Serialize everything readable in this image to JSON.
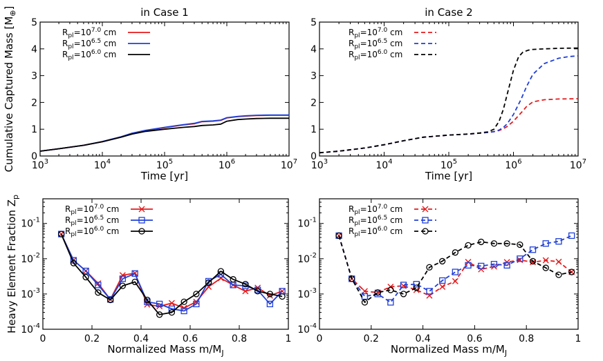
{
  "chart_data": [
    {
      "type": "line",
      "title": "in Case 1",
      "xlabel": "Time [yr]",
      "ylabel": "Cumulative Captured Mass [M",
      "ylabel_sym": "⊕",
      "ylabel_close": "]",
      "xscale": "log",
      "xlim": [
        1000,
        10000000
      ],
      "ylim": [
        0,
        5
      ],
      "x_ticks": [
        {
          "base": "10",
          "exp": "3"
        },
        {
          "base": "10",
          "exp": "4"
        },
        {
          "base": "10",
          "exp": "5"
        },
        {
          "base": "10",
          "exp": "6"
        },
        {
          "base": "10",
          "exp": "7"
        }
      ],
      "y_ticks": [
        "0",
        "1",
        "2",
        "3",
        "4",
        "5"
      ],
      "legend_position": "top-left",
      "series": [
        {
          "pre": "R",
          "sub": "pl",
          "mid": "=10",
          "sup": "7.0",
          "post": " cm",
          "color": "#e41a1c",
          "style": "solid",
          "marker": "",
          "x": [
            1000,
            2000,
            5000,
            10000,
            20000,
            30000,
            50000,
            100000,
            200000,
            300000,
            400000,
            600000,
            800000,
            1000000,
            1500000,
            2000000,
            3000000,
            5000000,
            10000000
          ],
          "y": [
            0.18,
            0.27,
            0.4,
            0.53,
            0.71,
            0.84,
            0.95,
            1.06,
            1.16,
            1.2,
            1.28,
            1.3,
            1.33,
            1.42,
            1.47,
            1.49,
            1.51,
            1.52,
            1.52
          ]
        },
        {
          "pre": "R",
          "sub": "pl",
          "mid": "=10",
          "sup": "6.5",
          "post": " cm",
          "color": "#1f3fd6",
          "style": "solid",
          "marker": "",
          "x": [
            1000,
            2000,
            5000,
            10000,
            20000,
            30000,
            50000,
            100000,
            200000,
            300000,
            400000,
            600000,
            800000,
            1000000,
            1500000,
            2000000,
            3000000,
            5000000,
            10000000
          ],
          "y": [
            0.18,
            0.27,
            0.4,
            0.54,
            0.72,
            0.85,
            0.96,
            1.07,
            1.17,
            1.22,
            1.29,
            1.31,
            1.34,
            1.43,
            1.48,
            1.5,
            1.52,
            1.53,
            1.53
          ]
        },
        {
          "pre": "R",
          "sub": "pl",
          "mid": "=10",
          "sup": "6.0",
          "post": " cm",
          "color": "#000000",
          "style": "solid",
          "marker": "",
          "x": [
            1000,
            2000,
            5000,
            10000,
            20000,
            30000,
            50000,
            100000,
            200000,
            300000,
            400000,
            600000,
            800000,
            1000000,
            1500000,
            2000000,
            3000000,
            5000000,
            10000000
          ],
          "y": [
            0.18,
            0.27,
            0.4,
            0.53,
            0.7,
            0.82,
            0.92,
            1.0,
            1.07,
            1.1,
            1.14,
            1.16,
            1.19,
            1.3,
            1.36,
            1.38,
            1.4,
            1.41,
            1.41
          ]
        }
      ]
    },
    {
      "type": "line",
      "title": "in Case 2",
      "xlabel": "Time [yr]",
      "ylabel": "",
      "xscale": "log",
      "xlim": [
        1000,
        10000000
      ],
      "ylim": [
        0,
        5
      ],
      "x_ticks": [
        {
          "base": "10",
          "exp": "3"
        },
        {
          "base": "10",
          "exp": "4"
        },
        {
          "base": "10",
          "exp": "5"
        },
        {
          "base": "10",
          "exp": "6"
        },
        {
          "base": "10",
          "exp": "7"
        }
      ],
      "y_ticks": [
        "0",
        "1",
        "2",
        "3",
        "4",
        "5"
      ],
      "legend_position": "top-left",
      "series": [
        {
          "pre": "R",
          "sub": "pl",
          "mid": "=10",
          "sup": "7.0",
          "post": " cm",
          "color": "#e41a1c",
          "style": "dashed",
          "marker": "",
          "x": [
            1000,
            2000,
            5000,
            10000,
            20000,
            40000,
            100000,
            200000,
            300000,
            400000,
            500000,
            600000,
            700000,
            800000,
            1000000,
            1300000,
            1600000,
            2000000,
            3000000,
            5000000,
            10000000
          ],
          "y": [
            0.12,
            0.18,
            0.3,
            0.42,
            0.57,
            0.7,
            0.78,
            0.82,
            0.85,
            0.88,
            0.91,
            0.95,
            1.02,
            1.1,
            1.3,
            1.6,
            1.85,
            2.02,
            2.1,
            2.13,
            2.14
          ]
        },
        {
          "pre": "R",
          "sub": "pl",
          "mid": "=10",
          "sup": "6.5",
          "post": " cm",
          "color": "#1f3fd6",
          "style": "dashed",
          "marker": "",
          "x": [
            1000,
            2000,
            5000,
            10000,
            20000,
            40000,
            100000,
            200000,
            300000,
            400000,
            500000,
            600000,
            700000,
            800000,
            1000000,
            1300000,
            1600000,
            2000000,
            3000000,
            5000000,
            7000000,
            10000000
          ],
          "y": [
            0.12,
            0.18,
            0.3,
            0.42,
            0.57,
            0.7,
            0.78,
            0.82,
            0.85,
            0.88,
            0.91,
            0.97,
            1.07,
            1.2,
            1.55,
            2.1,
            2.6,
            3.05,
            3.45,
            3.65,
            3.71,
            3.74
          ]
        },
        {
          "pre": "R",
          "sub": "pl",
          "mid": "=10",
          "sup": "6.0",
          "post": " cm",
          "color": "#000000",
          "style": "dashed",
          "marker": "",
          "x": [
            1000,
            2000,
            5000,
            10000,
            20000,
            40000,
            100000,
            200000,
            300000,
            400000,
            500000,
            600000,
            700000,
            800000,
            1000000,
            1200000,
            1400000,
            1700000,
            2000000,
            3000000,
            5000000,
            10000000
          ],
          "y": [
            0.12,
            0.18,
            0.3,
            0.42,
            0.57,
            0.7,
            0.78,
            0.82,
            0.86,
            0.9,
            1.0,
            1.3,
            1.75,
            2.3,
            3.2,
            3.7,
            3.88,
            3.95,
            3.98,
            4.0,
            4.02,
            4.03
          ]
        }
      ]
    },
    {
      "type": "line",
      "title": "",
      "xlabel": "Normalized Mass m/M",
      "xlabel_sub": "J",
      "ylabel": "Heavy Element Fraction Z",
      "ylabel_sub": "p",
      "xscale": "linear",
      "yscale": "log",
      "xlim": [
        0,
        1
      ],
      "ylim": [
        0.0001,
        0.5
      ],
      "x_ticks": [
        "0",
        "0.2",
        "0.4",
        "0.6",
        "0.8",
        "1"
      ],
      "y_ticks": [
        {
          "base": "10",
          "exp": "-4"
        },
        {
          "base": "10",
          "exp": "-3"
        },
        {
          "base": "10",
          "exp": "-2"
        },
        {
          "base": "10",
          "exp": "-1"
        }
      ],
      "legend_position": "top-left",
      "series": [
        {
          "pre": "R",
          "sub": "pl",
          "mid": "=10",
          "sup": "7.0",
          "post": " cm",
          "color": "#e41a1c",
          "style": "solid",
          "marker": "x",
          "x": [
            0.075,
            0.125,
            0.175,
            0.225,
            0.275,
            0.325,
            0.375,
            0.425,
            0.475,
            0.525,
            0.575,
            0.625,
            0.675,
            0.725,
            0.775,
            0.825,
            0.875,
            0.925,
            0.975
          ],
          "y": [
            0.05,
            0.009,
            0.0045,
            0.002,
            0.0007,
            0.0034,
            0.0039,
            0.0005,
            0.00045,
            0.00055,
            0.0004,
            0.0006,
            0.0016,
            0.0028,
            0.0018,
            0.0012,
            0.0015,
            0.0009,
            0.0012
          ]
        },
        {
          "pre": "R",
          "sub": "pl",
          "mid": "=10",
          "sup": "6.5",
          "post": " cm",
          "color": "#1f3fd6",
          "style": "solid",
          "marker": "s",
          "x": [
            0.075,
            0.125,
            0.175,
            0.225,
            0.275,
            0.325,
            0.375,
            0.425,
            0.475,
            0.525,
            0.575,
            0.625,
            0.675,
            0.725,
            0.775,
            0.825,
            0.875,
            0.925,
            0.975
          ],
          "y": [
            0.05,
            0.009,
            0.0045,
            0.0018,
            0.0007,
            0.0027,
            0.0038,
            0.0006,
            0.00052,
            0.00038,
            0.00033,
            0.00052,
            0.0023,
            0.0036,
            0.0018,
            0.0017,
            0.0013,
            0.00052,
            0.0012
          ]
        },
        {
          "pre": "R",
          "sub": "pl",
          "mid": "=10",
          "sup": "6.0",
          "post": " cm",
          "color": "#000000",
          "style": "solid",
          "marker": "o",
          "x": [
            0.075,
            0.125,
            0.175,
            0.225,
            0.275,
            0.325,
            0.375,
            0.425,
            0.475,
            0.525,
            0.575,
            0.625,
            0.675,
            0.725,
            0.775,
            0.825,
            0.875,
            0.925,
            0.975
          ],
          "y": [
            0.05,
            0.0075,
            0.003,
            0.0011,
            0.00068,
            0.0017,
            0.0022,
            0.00068,
            0.00026,
            0.0003,
            0.0006,
            0.001,
            0.0021,
            0.0044,
            0.0026,
            0.0019,
            0.0012,
            0.001,
            0.00085
          ]
        }
      ]
    },
    {
      "type": "line",
      "title": "",
      "xlabel": "Normalized Mass m/M",
      "xlabel_sub": "J",
      "ylabel": "",
      "xscale": "linear",
      "yscale": "log",
      "xlim": [
        0,
        1
      ],
      "ylim": [
        0.0001,
        0.5
      ],
      "x_ticks": [
        "0",
        "0.2",
        "0.4",
        "0.6",
        "0.8",
        "1"
      ],
      "y_ticks": [
        {
          "base": "10",
          "exp": "-4"
        },
        {
          "base": "10",
          "exp": "-3"
        },
        {
          "base": "10",
          "exp": "-2"
        },
        {
          "base": "10",
          "exp": "-1"
        }
      ],
      "legend_position": "top-left",
      "series": [
        {
          "pre": "R",
          "sub": "pl",
          "mid": "=10",
          "sup": "7.0",
          "post": " cm",
          "color": "#e41a1c",
          "style": "dashed",
          "marker": "x",
          "x": [
            0.075,
            0.125,
            0.175,
            0.225,
            0.275,
            0.325,
            0.375,
            0.425,
            0.475,
            0.525,
            0.575,
            0.625,
            0.675,
            0.725,
            0.775,
            0.825,
            0.875,
            0.925,
            0.975
          ],
          "y": [
            0.045,
            0.0027,
            0.0012,
            0.0011,
            0.0016,
            0.0017,
            0.0013,
            0.0009,
            0.0016,
            0.0023,
            0.0081,
            0.005,
            0.006,
            0.008,
            0.0092,
            0.008,
            0.009,
            0.0082,
            0.0042
          ]
        },
        {
          "pre": "R",
          "sub": "pl",
          "mid": "=10",
          "sup": "6.5",
          "post": " cm",
          "color": "#1f3fd6",
          "style": "dashed",
          "marker": "s",
          "x": [
            0.075,
            0.125,
            0.175,
            0.225,
            0.275,
            0.325,
            0.375,
            0.425,
            0.475,
            0.525,
            0.575,
            0.625,
            0.675,
            0.725,
            0.775,
            0.825,
            0.875,
            0.925,
            0.975
          ],
          "y": [
            0.045,
            0.0027,
            0.00085,
            0.001,
            0.00058,
            0.0018,
            0.0019,
            0.0012,
            0.0024,
            0.0042,
            0.0065,
            0.0062,
            0.007,
            0.0065,
            0.01,
            0.018,
            0.027,
            0.031,
            0.045
          ]
        },
        {
          "pre": "R",
          "sub": "pl",
          "mid": "=10",
          "sup": "6.0",
          "post": " cm",
          "color": "#000000",
          "style": "dashed",
          "marker": "o",
          "x": [
            0.075,
            0.125,
            0.175,
            0.225,
            0.275,
            0.325,
            0.375,
            0.425,
            0.475,
            0.525,
            0.575,
            0.625,
            0.675,
            0.725,
            0.775,
            0.825,
            0.875,
            0.925,
            0.975
          ],
          "y": [
            0.045,
            0.0027,
            0.00058,
            0.0011,
            0.0013,
            0.001,
            0.0015,
            0.0057,
            0.0085,
            0.015,
            0.024,
            0.03,
            0.027,
            0.027,
            0.025,
            0.0085,
            0.0055,
            0.0035,
            0.0042
          ]
        }
      ]
    }
  ]
}
